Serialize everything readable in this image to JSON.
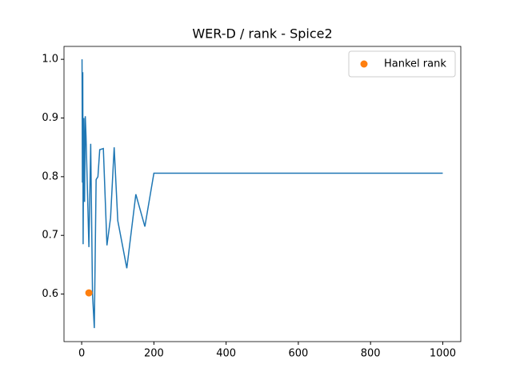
{
  "chart_data": {
    "type": "line",
    "title": "WER-D / rank - Spice2",
    "series": [
      {
        "type": "line",
        "color": "#1f77b4",
        "x": [
          1,
          2,
          3,
          4,
          5,
          6,
          8,
          10,
          12,
          15,
          20,
          25,
          30,
          35,
          40,
          45,
          50,
          60,
          70,
          80,
          90,
          100,
          125,
          150,
          175,
          200,
          1000
        ],
        "values": [
          1.0,
          0.79,
          0.978,
          0.685,
          0.8,
          0.9,
          0.757,
          0.903,
          0.87,
          0.8,
          0.68,
          0.856,
          0.6,
          0.542,
          0.795,
          0.8,
          0.846,
          0.848,
          0.683,
          0.73,
          0.85,
          0.725,
          0.644,
          0.77,
          0.715,
          0.806,
          0.806
        ]
      },
      {
        "type": "scatter",
        "name": "Hankel rank",
        "color": "#ff7f0e",
        "x": [
          20
        ],
        "values": [
          0.602
        ]
      }
    ],
    "xlim": [
      -48.95,
      1049.95
    ],
    "xticks": [
      0,
      200,
      400,
      600,
      800,
      1000
    ],
    "ylim": [
      0.519,
      1.022
    ],
    "yticks": [
      0.6,
      0.7,
      0.8,
      0.9,
      {
        "value": 1,
        "label": "1.0"
      }
    ],
    "legend": "upper right"
  }
}
